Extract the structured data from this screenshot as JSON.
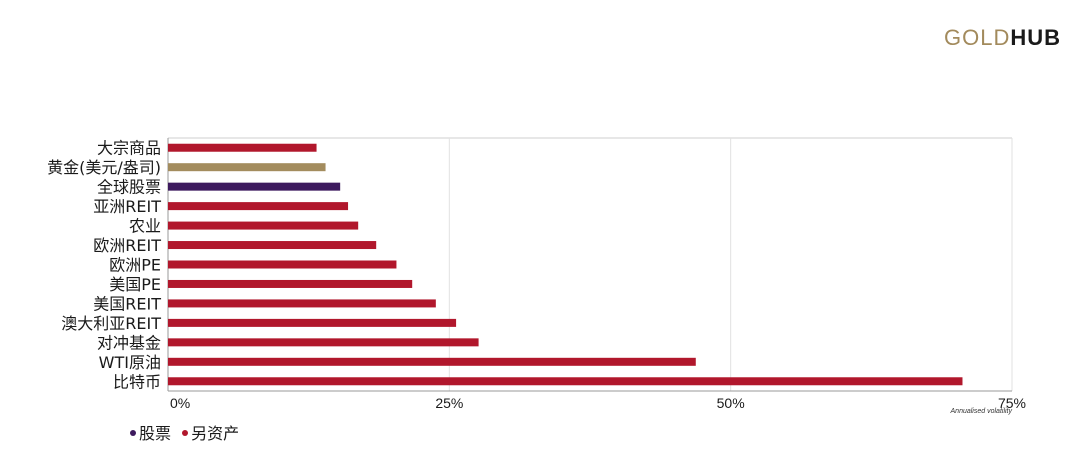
{
  "logo": {
    "gold": "GOLD",
    "hub": "HUB"
  },
  "chart_data": {
    "type": "bar",
    "orientation": "horizontal",
    "categories": [
      "大宗商品",
      "黄金(美元/盎司)",
      "全球股票",
      "亚洲REIT",
      "农业",
      "欧洲REIT",
      "欧洲PE",
      "美国PE",
      "美国REIT",
      "澳大利亚REIT",
      "对冲基金",
      "WTI原油",
      "比特币"
    ],
    "values": [
      13.2,
      14.0,
      15.3,
      16.0,
      16.9,
      18.5,
      20.3,
      21.7,
      23.8,
      25.6,
      27.6,
      46.9,
      70.6
    ],
    "bar_colors": [
      "#b1172c",
      "#a38c5e",
      "#3d1a5e",
      "#b1172c",
      "#b1172c",
      "#b1172c",
      "#b1172c",
      "#b1172c",
      "#b1172c",
      "#b1172c",
      "#b1172c",
      "#b1172c",
      "#b1172c"
    ],
    "xlim": [
      0,
      75
    ],
    "xticks": [
      "0%",
      "25%",
      "50%",
      "75%"
    ],
    "xtick_values": [
      0,
      25,
      50,
      75
    ],
    "xlabel": "Annualised volatility",
    "grid": true,
    "legend": [
      {
        "label": "股票",
        "color": "#3d1a5e"
      },
      {
        "label": "另资产",
        "color": "#b1172c"
      }
    ]
  }
}
